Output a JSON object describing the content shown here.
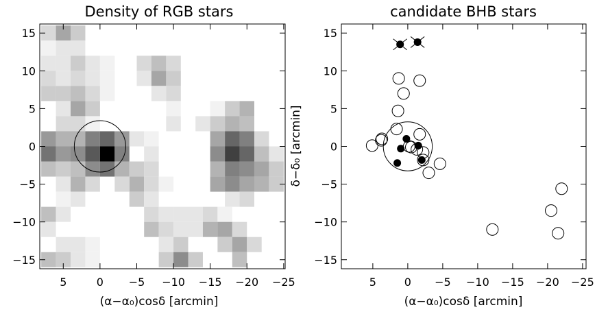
{
  "chart_data": [
    {
      "type": "heatmap",
      "title": "Density of RGB stars",
      "xlabel": "(α−α₀)cosδ [arcmin]",
      "ylabel": "",
      "xlim": [
        8.2,
        -25.2
      ],
      "ylim": [
        -16.2,
        16.2
      ],
      "xticks": [
        5,
        0,
        -5,
        -10,
        -15,
        -20,
        -25
      ],
      "yticks": [
        -15,
        -10,
        -5,
        0,
        5,
        10,
        15
      ],
      "xtick_labels": [
        "5",
        "0",
        "−5",
        "−10",
        "−15",
        "−20",
        "−25"
      ],
      "ytick_labels": [
        "−15",
        "−10",
        "−5",
        "0",
        "5",
        "10",
        "15"
      ],
      "cell_size": 2,
      "value_scale": "0 = white, 1 = black",
      "circle": {
        "x": 0,
        "y": 0,
        "r": 3.5
      },
      "cells": [
        [
          7,
          15,
          0.15
        ],
        [
          5,
          15,
          0.35
        ],
        [
          3,
          15,
          0.2
        ],
        [
          7,
          13,
          0.05
        ],
        [
          5,
          13,
          0.1
        ],
        [
          3,
          13,
          0.1
        ],
        [
          7,
          11,
          0.1
        ],
        [
          5,
          11,
          0.1
        ],
        [
          3,
          11,
          0.2
        ],
        [
          1,
          11,
          0.1
        ],
        [
          -1,
          11,
          0.05
        ],
        [
          7,
          9,
          0.15
        ],
        [
          5,
          9,
          0.1
        ],
        [
          3,
          9,
          0.15
        ],
        [
          1,
          9,
          0.1
        ],
        [
          -1,
          9,
          0.05
        ],
        [
          7,
          7,
          0.2
        ],
        [
          5,
          7,
          0.2
        ],
        [
          3,
          7,
          0.25
        ],
        [
          1,
          7,
          0.15
        ],
        [
          -1,
          7,
          0.05
        ],
        [
          5,
          5,
          0.1
        ],
        [
          3,
          5,
          0.35
        ],
        [
          1,
          5,
          0.2
        ],
        [
          5,
          3,
          0.15
        ],
        [
          3,
          3,
          0.15
        ],
        [
          1,
          3,
          0.05
        ],
        [
          7,
          1,
          0.4
        ],
        [
          5,
          1,
          0.3
        ],
        [
          3,
          1,
          0.3
        ],
        [
          1,
          1,
          0.5
        ],
        [
          -1,
          1,
          0.6
        ],
        [
          -3,
          1,
          0.4
        ],
        [
          7,
          -1,
          0.55
        ],
        [
          5,
          -1,
          0.4
        ],
        [
          3,
          -1,
          0.45
        ],
        [
          1,
          -1,
          0.65
        ],
        [
          -1,
          -1,
          1.0
        ],
        [
          -3,
          -1,
          0.5
        ],
        [
          7,
          -3,
          0.25
        ],
        [
          5,
          -3,
          0.2
        ],
        [
          3,
          -3,
          0.25
        ],
        [
          1,
          -3,
          0.45
        ],
        [
          -1,
          -3,
          0.55
        ],
        [
          -3,
          -3,
          0.3
        ],
        [
          -5,
          -3,
          0.2
        ],
        [
          -7,
          -3,
          0.15
        ],
        [
          -5,
          -5,
          0.3
        ],
        [
          -7,
          -5,
          0.15
        ],
        [
          -9,
          -5,
          0.05
        ],
        [
          -6,
          11,
          0.15
        ],
        [
          -8,
          11,
          0.25
        ],
        [
          -10,
          11,
          0.15
        ],
        [
          -6,
          9,
          0.1
        ],
        [
          -8,
          9,
          0.35
        ],
        [
          -10,
          9,
          0.2
        ],
        [
          -8,
          7,
          0.1
        ],
        [
          -10,
          7,
          0.15
        ],
        [
          -10,
          5,
          0.05
        ],
        [
          -10,
          3,
          0.1
        ],
        [
          -5,
          1,
          0.1
        ],
        [
          -7,
          1,
          0.05
        ],
        [
          -7,
          -1,
          0.1
        ],
        [
          -16,
          5,
          0.05
        ],
        [
          -18,
          5,
          0.2
        ],
        [
          -20,
          5,
          0.3
        ],
        [
          -14,
          3,
          0.1
        ],
        [
          -16,
          3,
          0.2
        ],
        [
          -18,
          3,
          0.3
        ],
        [
          -20,
          3,
          0.25
        ],
        [
          -16,
          1,
          0.35
        ],
        [
          -18,
          1,
          0.6
        ],
        [
          -20,
          1,
          0.5
        ],
        [
          -22,
          1,
          0.15
        ],
        [
          -16,
          -1,
          0.45
        ],
        [
          -18,
          -1,
          0.75
        ],
        [
          -20,
          -1,
          0.6
        ],
        [
          -22,
          -1,
          0.25
        ],
        [
          -24,
          -1,
          0.1
        ],
        [
          -16,
          -3,
          0.3
        ],
        [
          -18,
          -3,
          0.5
        ],
        [
          -20,
          -3,
          0.45
        ],
        [
          -22,
          -3,
          0.35
        ],
        [
          -24,
          -3,
          0.2
        ],
        [
          -16,
          -5,
          0.35
        ],
        [
          -18,
          -5,
          0.45
        ],
        [
          -20,
          -5,
          0.35
        ],
        [
          -22,
          -5,
          0.3
        ],
        [
          -24,
          -5,
          0.2
        ],
        [
          -18,
          -7,
          0.1
        ],
        [
          -20,
          -7,
          0.15
        ],
        [
          5,
          -5,
          0.1
        ],
        [
          3,
          -5,
          0.3
        ],
        [
          1,
          -5,
          0.15
        ],
        [
          -3,
          -5,
          0.15
        ],
        [
          5,
          -7,
          0.05
        ],
        [
          3,
          -7,
          0.1
        ],
        [
          -5,
          -7,
          0.2
        ],
        [
          -7,
          -7,
          0.1
        ],
        [
          7,
          -9,
          0.25
        ],
        [
          5,
          -9,
          0.1
        ],
        [
          -7,
          -9,
          0.15
        ],
        [
          -9,
          -9,
          0.1
        ],
        [
          -11,
          -9,
          0.1
        ],
        [
          -13,
          -9,
          0.1
        ],
        [
          -15,
          -9,
          0.15
        ],
        [
          -17,
          -9,
          0.05
        ],
        [
          7,
          -11,
          0.1
        ],
        [
          -7,
          -11,
          0.25
        ],
        [
          -9,
          -11,
          0.15
        ],
        [
          -11,
          -11,
          0.1
        ],
        [
          -13,
          -11,
          0.1
        ],
        [
          -15,
          -11,
          0.3
        ],
        [
          -17,
          -11,
          0.35
        ],
        [
          -19,
          -11,
          0.15
        ],
        [
          5,
          -13,
          0.1
        ],
        [
          3,
          -13,
          0.1
        ],
        [
          1,
          -13,
          0.05
        ],
        [
          -9,
          -13,
          0.1
        ],
        [
          -11,
          -13,
          0.2
        ],
        [
          -17,
          -13,
          0.2
        ],
        [
          -19,
          -13,
          0.35
        ],
        [
          -21,
          -13,
          0.15
        ],
        [
          7,
          -15,
          0.25
        ],
        [
          5,
          -15,
          0.2
        ],
        [
          3,
          -15,
          0.1
        ],
        [
          1,
          -15,
          0.05
        ],
        [
          -9,
          -15,
          0.2
        ],
        [
          -11,
          -15,
          0.45
        ],
        [
          -13,
          -15,
          0.2
        ],
        [
          -19,
          -15,
          0.25
        ]
      ]
    },
    {
      "type": "scatter",
      "title": "candidate BHB stars",
      "xlabel": "(α−α₀)cosδ [arcmin]",
      "ylabel": "δ−δ₀ [arcmin]",
      "xlim": [
        9.5,
        -25.5
      ],
      "ylim": [
        -16.2,
        16.2
      ],
      "xticks": [
        5,
        0,
        -5,
        -10,
        -15,
        -20,
        -25
      ],
      "yticks": [
        -15,
        -10,
        -5,
        0,
        5,
        10,
        15
      ],
      "xtick_labels": [
        "5",
        "0",
        "−5",
        "−10",
        "−15",
        "−20",
        "−25"
      ],
      "ytick_labels": [
        "−15",
        "−10",
        "−5",
        "0",
        "5",
        "10",
        "15"
      ],
      "circle": {
        "x": 0,
        "y": 0,
        "r": 3.5
      },
      "series": [
        {
          "marker": "open-circle",
          "points": [
            [
              5.1,
              0.1
            ],
            [
              3.8,
              0.8
            ],
            [
              3.7,
              1.0
            ],
            [
              1.3,
              9.0
            ],
            [
              0.6,
              7.0
            ],
            [
              1.4,
              4.7
            ],
            [
              1.6,
              2.3
            ],
            [
              -1.7,
              8.7
            ],
            [
              -1.7,
              1.6
            ],
            [
              -0.2,
              0.0
            ],
            [
              -0.5,
              -0.1
            ],
            [
              -1.3,
              -0.4
            ],
            [
              -2.2,
              -0.8
            ],
            [
              -2.2,
              -1.8
            ],
            [
              -3.0,
              -3.5
            ],
            [
              -4.6,
              -2.3
            ],
            [
              -12.1,
              -11.0
            ],
            [
              -20.5,
              -8.5
            ],
            [
              -21.5,
              -11.5
            ],
            [
              -22.0,
              -5.6
            ]
          ]
        },
        {
          "marker": "filled-circle",
          "points": [
            [
              0.2,
              1.0
            ],
            [
              1.0,
              -0.3
            ],
            [
              -1.5,
              0.1
            ],
            [
              -2.0,
              -1.8
            ],
            [
              1.5,
              -2.2
            ]
          ]
        },
        {
          "marker": "crossed-filled-circle",
          "points": [
            [
              1.1,
              13.5
            ],
            [
              -1.4,
              13.8
            ]
          ]
        }
      ]
    }
  ]
}
